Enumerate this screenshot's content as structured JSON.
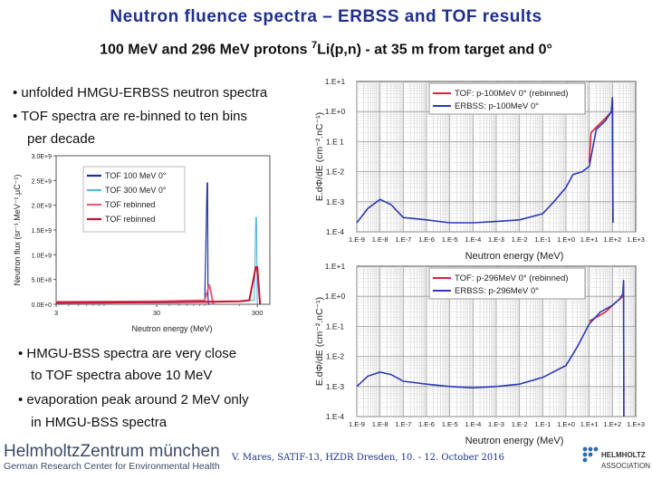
{
  "slide": {
    "title": "Neutron fluence spectra – ERBSS and TOF results",
    "subtitle_pre": "100 MeV and 296 MeV protons ",
    "subtitle_sup": "7",
    "subtitle_post": "Li(p,n) - at 35 m from target and 0°",
    "bullets_top": [
      "• unfolded HMGU-ERBSS neutron spectra",
      "• TOF spectra are re-binned to ten bins",
      "per decade"
    ],
    "bullets_bottom": [
      "• HMGU-BSS spectra are very close",
      "to TOF spectra above 10 MeV",
      "• evaporation peak around 2 MeV only",
      "in HMGU-BSS spectra"
    ],
    "footer": {
      "logo_main": "HelmholtzZentrum münchen",
      "logo_sub": "German Research Center for Environmental Health",
      "citation": "V. Mares, SATIF-13, HZDR Dresden, 10. - 12. October 2016",
      "hgf_1": "HELMHOLTZ",
      "hgf_2": "ASSOCIATION"
    }
  },
  "chart_data": [
    {
      "type": "line",
      "ylabel": "Neutron flux (sr⁻¹.MeV⁻¹.µC⁻¹)",
      "xlabel": "Neutron energy (MeV)",
      "x_ticks": [
        "3",
        "30",
        "300"
      ],
      "y_ticks": [
        "0.0E+0",
        "5.0E+8",
        "1.0E+9",
        "1.5E+9",
        "2.0E+9",
        "2.5E+9",
        "3.0E+9"
      ],
      "xlim": [
        3,
        400
      ],
      "ylim": [
        0,
        3000000000
      ],
      "x_scale": "log",
      "legend": [
        {
          "name": "TOF 100 MeV 0°",
          "color": "#1f2fa8"
        },
        {
          "name": "TOF 300 MeV 0°",
          "color": "#58b8e0"
        },
        {
          "name": "TOF rebinned",
          "color": "#e0607a"
        },
        {
          "name": "TOF rebinned",
          "color": "#c8102e"
        }
      ],
      "series": [
        {
          "name": "TOF 100 MeV 0°",
          "color": "#1f2fa8",
          "x": [
            3,
            10,
            30,
            60,
            90,
            95,
            96,
            97,
            98,
            100
          ],
          "y": [
            50000000,
            60000000,
            60000000,
            70000000,
            80000000,
            2450000000,
            2450000000,
            150000000,
            0,
            0
          ]
        },
        {
          "name": "TOF 300 MeV 0°",
          "color": "#58b8e0",
          "x": [
            3,
            10,
            30,
            100,
            150,
            200,
            250,
            280,
            290,
            295,
            300
          ],
          "y": [
            30000000,
            30000000,
            30000000,
            40000000,
            50000000,
            60000000,
            80000000,
            80000000,
            1750000000,
            1750000000,
            0
          ]
        },
        {
          "name": "TOF rebinned",
          "color": "#e0607a",
          "x": [
            3,
            10,
            30,
            90,
            100,
            110
          ],
          "y": [
            50000000,
            55000000,
            60000000,
            80000000,
            400000000,
            0
          ]
        },
        {
          "name": "TOF rebinned",
          "color": "#c8102e",
          "x": [
            3,
            10,
            30,
            100,
            200,
            250,
            290,
            300,
            320
          ],
          "y": [
            30000000,
            35000000,
            40000000,
            50000000,
            60000000,
            80000000,
            750000000,
            750000000,
            0
          ]
        }
      ]
    },
    {
      "type": "line",
      "ylabel": "E.dΦ/dE (cm⁻².nC⁻¹)",
      "xlabel": "Neutron energy (MeV)",
      "x_ticks": [
        "1.E-9",
        "1.E-8",
        "1.E-7",
        "1.E-6",
        "1.E-5",
        "1.E-4",
        "1.E-3",
        "1.E-2",
        "1.E-1",
        "1.E+0",
        "1.E+1",
        "1.E+2",
        "1.E+3"
      ],
      "y_ticks": [
        "1.E-4",
        "1.E-3",
        "1.E-2",
        "1.E-1",
        "1.E+0",
        "1.E+1"
      ],
      "y_tick_labels_printed": [
        "1.E-4",
        "1.E-3",
        "1.E-2",
        "1.E 1",
        "1.E+0",
        "1.E+1"
      ],
      "xlim": [
        1e-09,
        1000
      ],
      "ylim": [
        0.0001,
        10
      ],
      "scale": "log-log",
      "legend": [
        {
          "name": "TOF: p-100MeV 0° (rebinned)",
          "color": "#e0203a"
        },
        {
          "name": "ERBSS: p-100MeV 0°",
          "color": "#2a3ab8"
        }
      ],
      "series": [
        {
          "name": "TOF: p-100MeV 0° (rebinned)",
          "color": "#e0203a",
          "x": [
            10,
            12,
            20,
            50,
            90,
            100,
            105
          ],
          "y": [
            0.02,
            0.2,
            0.3,
            0.6,
            1.0,
            2.5,
            0.0002
          ]
        },
        {
          "name": "ERBSS: p-100MeV 0°",
          "color": "#2a3ab8",
          "x": [
            1e-09,
            3e-09,
            1e-08,
            3e-08,
            1e-07,
            1e-06,
            1e-05,
            0.0001,
            0.001,
            0.01,
            0.1,
            0.3,
            1,
            2,
            5,
            10,
            20,
            50,
            90,
            100,
            105
          ],
          "y": [
            0.0002,
            0.0006,
            0.0012,
            0.0008,
            0.0003,
            0.00025,
            0.0002,
            0.0002,
            0.00022,
            0.00025,
            0.0004,
            0.001,
            0.003,
            0.008,
            0.01,
            0.015,
            0.25,
            0.5,
            1.0,
            3.0,
            0.0002
          ]
        }
      ]
    },
    {
      "type": "line",
      "ylabel": "E.dΦ/dE (cm⁻².nC⁻¹)",
      "xlabel": "Neutron energy (MeV)",
      "x_ticks": [
        "1.E-9",
        "1.E-8",
        "1.E-7",
        "1.E-6",
        "1.E-5",
        "1.E-4",
        "1.E-3",
        "1.E-2",
        "1.E-1",
        "1.E+0",
        "1.E+1",
        "1.E+2",
        "1.E+3"
      ],
      "y_ticks": [
        "1.E-4",
        "1.E-3",
        "1.E-2",
        "1.E-1",
        "1.E+0",
        "1.E+1"
      ],
      "xlim": [
        1e-09,
        1000
      ],
      "ylim": [
        0.0001,
        10
      ],
      "scale": "log-log",
      "legend": [
        {
          "name": "TOF: p-296MeV 0° (rebinned)",
          "color": "#e0203a"
        },
        {
          "name": "ERBSS: p-296MeV 0°",
          "color": "#2a3ab8"
        }
      ],
      "series": [
        {
          "name": "TOF: p-296MeV 0° (rebinned)",
          "color": "#e0203a",
          "x": [
            10,
            20,
            50,
            100,
            200,
            280,
            300,
            310
          ],
          "y": [
            0.15,
            0.2,
            0.3,
            0.5,
            0.8,
            1.0,
            3.0,
            0.0001
          ]
        },
        {
          "name": "ERBSS: p-296MeV 0°",
          "color": "#2a3ab8",
          "x": [
            1e-09,
            3e-09,
            1e-08,
            3e-08,
            1e-07,
            1e-06,
            1e-05,
            0.0001,
            0.001,
            0.01,
            0.1,
            1,
            3,
            10,
            30,
            100,
            200,
            280,
            300,
            310
          ],
          "y": [
            0.001,
            0.0022,
            0.003,
            0.0025,
            0.0015,
            0.0012,
            0.001,
            0.0009,
            0.001,
            0.0012,
            0.002,
            0.005,
            0.02,
            0.12,
            0.3,
            0.5,
            0.8,
            1.2,
            3.5,
            0.0001
          ]
        }
      ]
    }
  ]
}
